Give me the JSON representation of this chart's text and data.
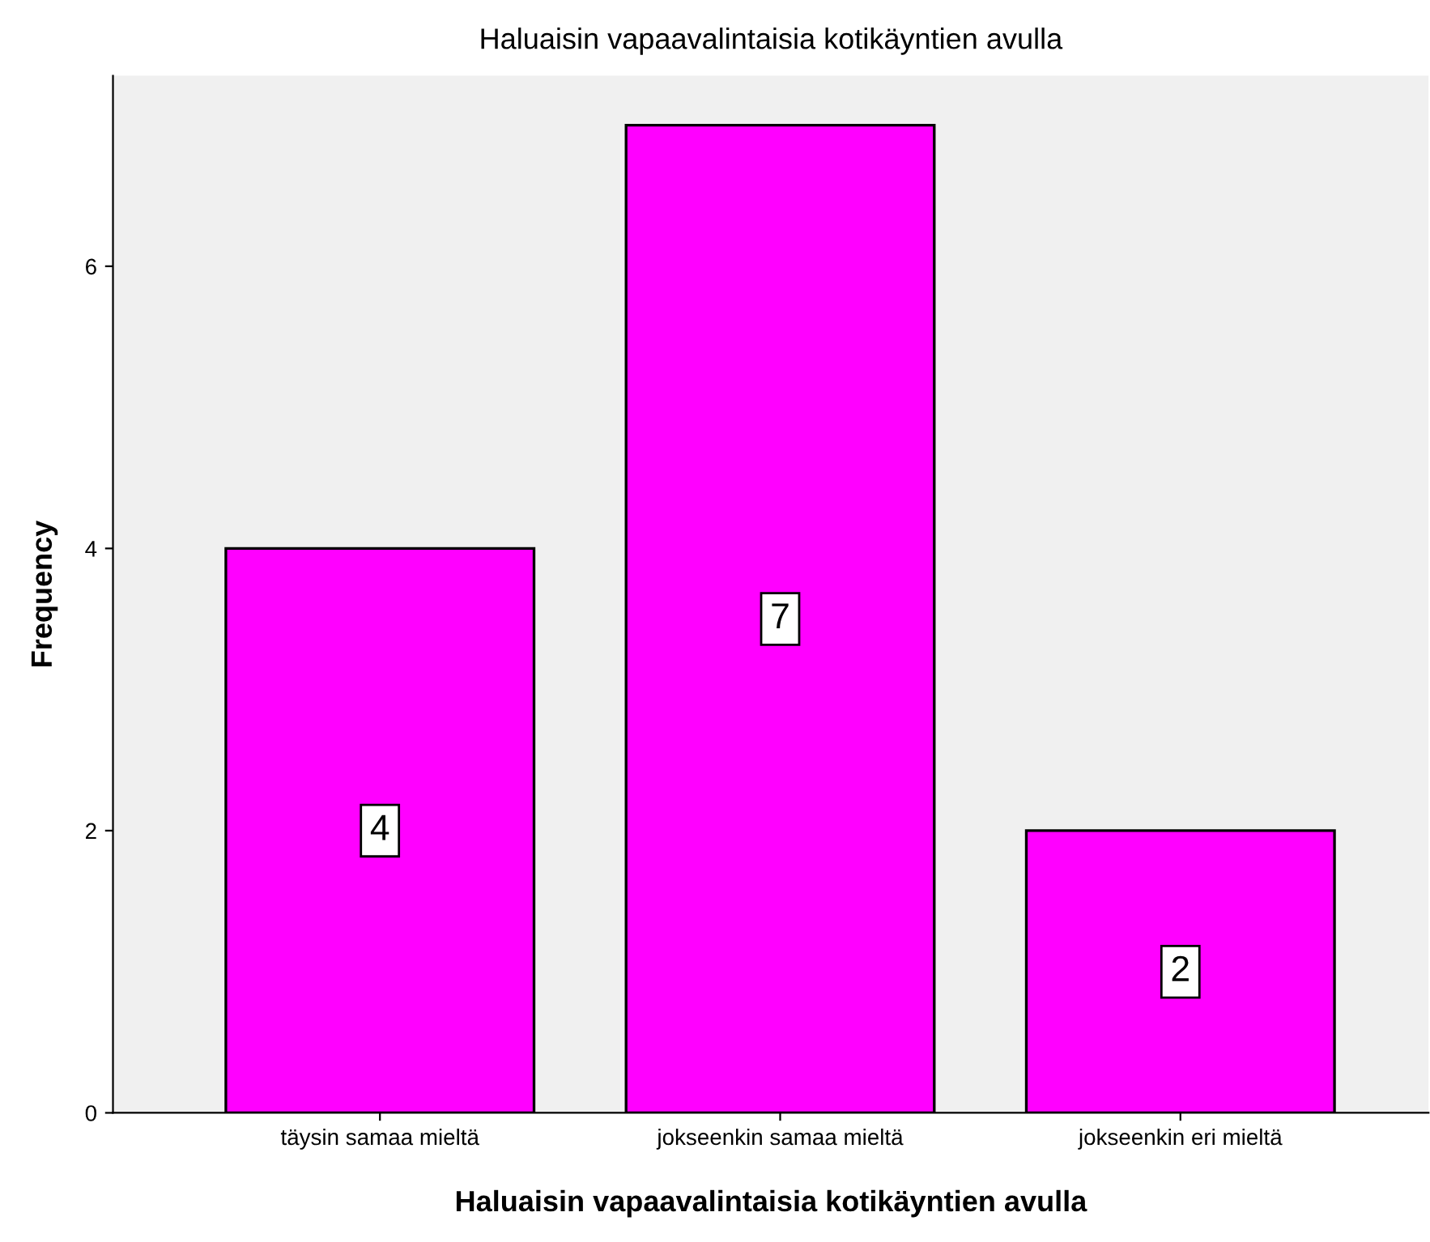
{
  "chart_data": {
    "type": "bar",
    "title": "Haluaisin vapaavalintaisia kotikäyntien avulla",
    "xlabel": "Haluaisin vapaavalintaisia kotikäyntien avulla",
    "ylabel": "Frequency",
    "categories": [
      "täysin samaa mieltä",
      "jokseenkin samaa mieltä",
      "jokseenkin eri mieltä"
    ],
    "values": [
      4,
      7,
      2
    ],
    "color": "#ff00ff",
    "ylim": [
      0,
      7.35
    ],
    "yticks": [
      0,
      2,
      4,
      6
    ],
    "grid": false,
    "data_labels": true
  }
}
